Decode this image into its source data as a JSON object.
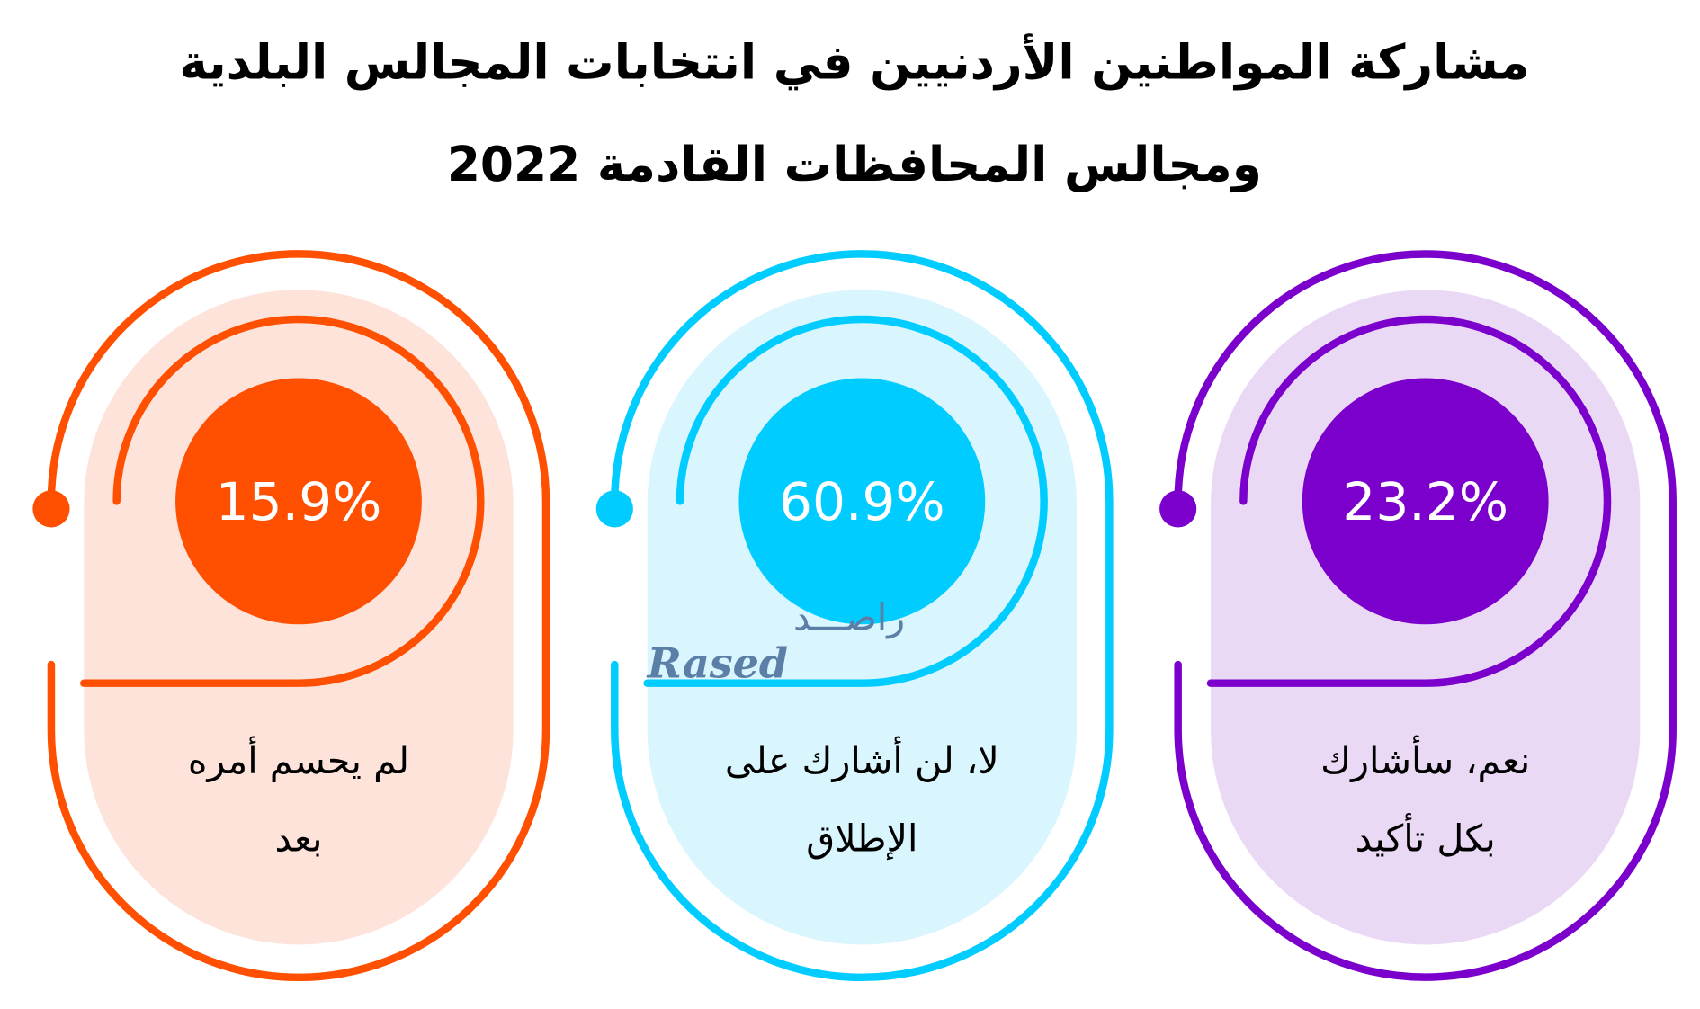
{
  "title": {
    "line1": "مشاركة المواطنين الأردنيين في انتخابات المجالس البلدية",
    "line2": "ومجالس المحافظات القادمة 2022"
  },
  "watermark": {
    "arabic": "راصـــد",
    "english": "Rased"
  },
  "chart_data": {
    "type": "table",
    "title": "مشاركة المواطنين الأردنيين في انتخابات المجالس البلدية ومجالس المحافظات القادمة 2022",
    "unit": "%",
    "categories": [
      "لم يحسم أمره بعد",
      "لا، لن أشارك على الإطلاق",
      "نعم، سأشارك بكل تأكيد"
    ],
    "values": [
      15.9,
      60.9,
      23.2
    ],
    "items": [
      {
        "value": 15.9,
        "value_label": "15.9%",
        "lines": [
          "لم يحسم أمره",
          "بعد"
        ],
        "color": "#FF4F00",
        "fill": "#FDE3DA"
      },
      {
        "value": 60.9,
        "value_label": "60.9%",
        "lines": [
          "لا، لن أشارك على",
          "الإطلاق"
        ],
        "color": "#00CCFF",
        "fill": "#D9F5FD"
      },
      {
        "value": 23.2,
        "value_label": "23.2%",
        "lines": [
          "نعم، سأشارك",
          "بكل تأكيد"
        ],
        "color": "#7B00CC",
        "fill": "#EAD9F5"
      }
    ]
  }
}
